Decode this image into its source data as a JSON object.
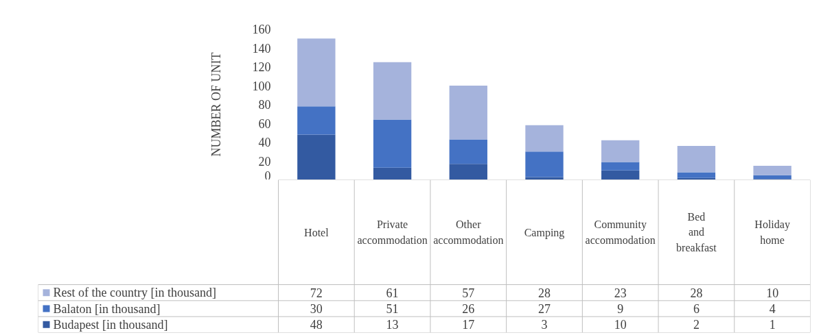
{
  "chart_data": {
    "type": "bar",
    "stacked": true,
    "ylabel": "NUMBER OF UNIT",
    "categories": [
      "Hotel",
      "Private accommodation",
      "Other accommodation",
      "Camping",
      "Community accommodation",
      "Bed and breakfast",
      "Holiday home"
    ],
    "series": [
      {
        "name": "Budapest [in thousand]",
        "color": "#335aa1",
        "values": [
          48,
          13,
          17,
          3,
          10,
          2,
          1
        ]
      },
      {
        "name": "Balaton  [in thousand]",
        "color": "#4472c4",
        "values": [
          30,
          51,
          26,
          27,
          9,
          6,
          4
        ]
      },
      {
        "name": "Rest of the country [in thousand]",
        "color": "#a5b3dc",
        "values": [
          72,
          61,
          57,
          28,
          23,
          28,
          10
        ]
      }
    ],
    "ylim": [
      0,
      160
    ],
    "yticks": [
      0,
      20,
      40,
      60,
      80,
      100,
      120,
      140,
      160
    ],
    "grid": false,
    "data_labels": true,
    "legend": "bottom left"
  }
}
